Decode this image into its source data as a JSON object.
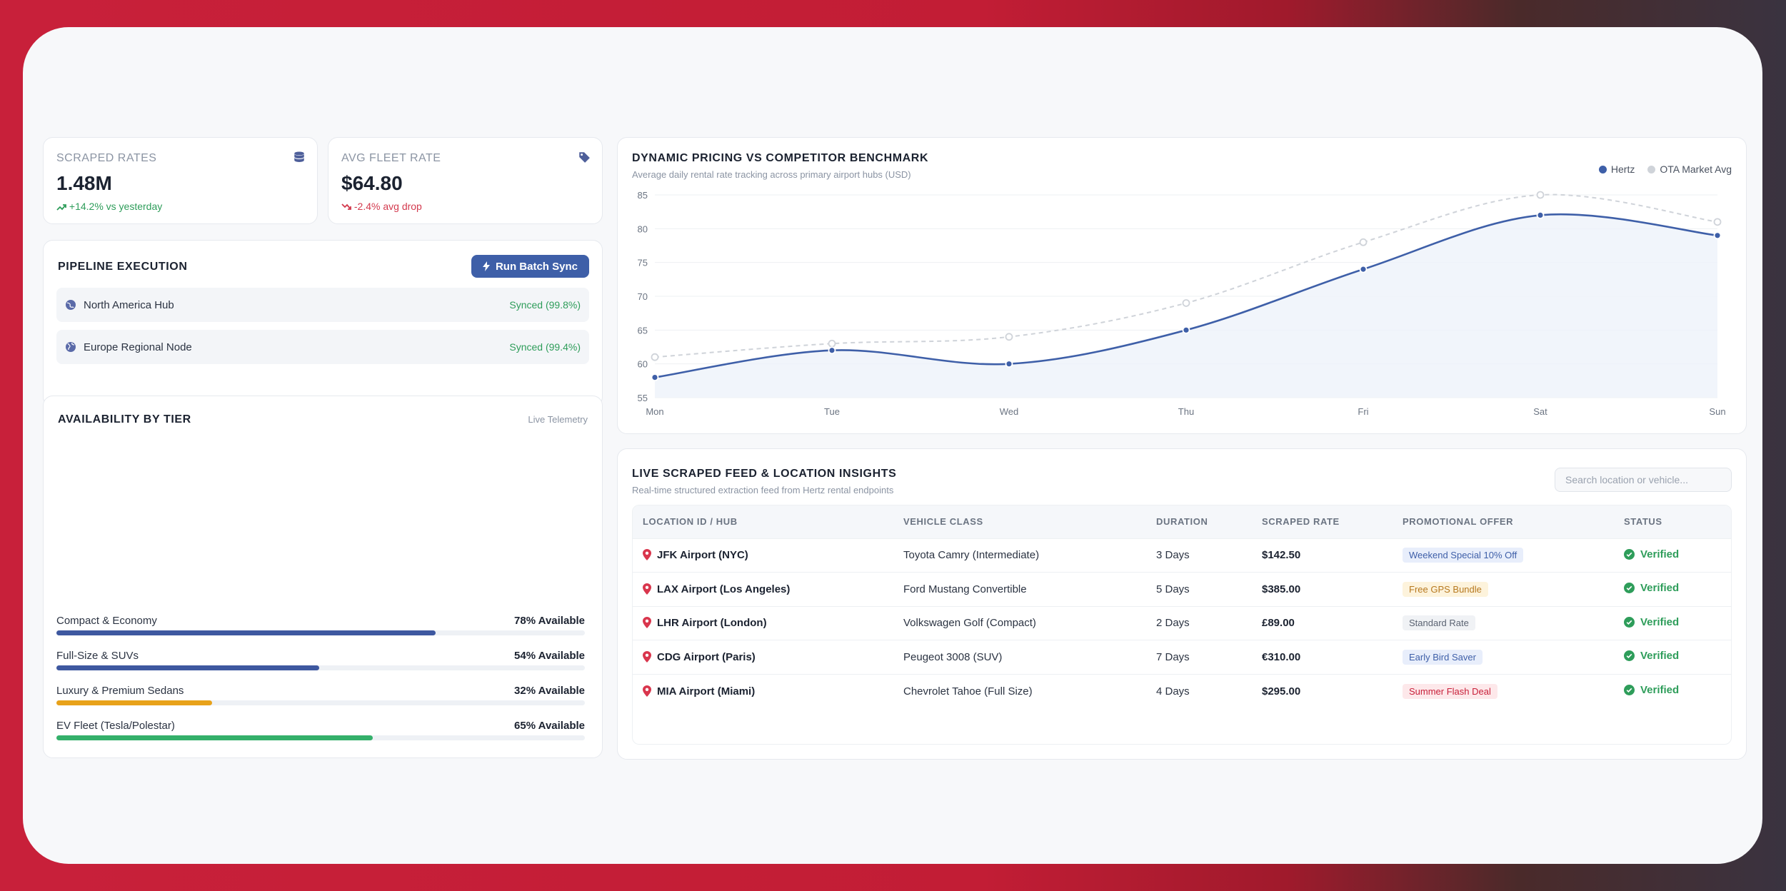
{
  "kpis": [
    {
      "label": "SCRAPED RATES",
      "value": "1.48M",
      "delta": "+14.2% vs yesterday",
      "icon": "database-icon",
      "trend": "up"
    },
    {
      "label": "AVG FLEET RATE",
      "value": "$64.80",
      "delta": "-2.4% avg drop",
      "icon": "tag-icon",
      "trend": "down"
    }
  ],
  "pipeline": {
    "title": "PIPELINE EXECUTION",
    "button_label": "Run Batch Sync",
    "nodes": [
      {
        "name": "North America Hub",
        "status": "Synced (99.8%)"
      },
      {
        "name": "Europe Regional Node",
        "status": "Synced (99.4%)"
      }
    ]
  },
  "availability": {
    "title": "AVAILABILITY BY TIER",
    "subtitle": "Live Telemetry",
    "tiers": [
      {
        "label": "Compact & Economy",
        "value_text": "78% Available",
        "pct": 78,
        "color": "#3e58a0"
      },
      {
        "label": "Full-Size & SUVs",
        "value_text": "54% Available",
        "pct": 54,
        "color": "#3e58a0"
      },
      {
        "label": "Luxury & Premium Sedans",
        "value_text": "32% Available",
        "pct": 32,
        "color": "#e8a21a"
      },
      {
        "label": "EV Fleet (Tesla/Polestar)",
        "value_text": "65% Available",
        "pct": 65,
        "color": "#34b06a"
      }
    ]
  },
  "chart_card": {
    "title": "DYNAMIC PRICING VS COMPETITOR BENCHMARK",
    "subtitle": "Average daily rental rate tracking across primary airport hubs (USD)"
  },
  "chart_data": {
    "type": "line",
    "categories": [
      "Mon",
      "Tue",
      "Wed",
      "Thu",
      "Fri",
      "Sat",
      "Sun"
    ],
    "series": [
      {
        "name": "Hertz",
        "values": [
          58,
          62,
          60,
          65,
          74,
          82,
          79
        ],
        "color": "#3e5fa8",
        "style": "solid",
        "fill": true
      },
      {
        "name": "OTA Market Avg",
        "values": [
          61,
          63,
          64,
          69,
          78,
          85,
          81
        ],
        "color": "#cfd3d9",
        "style": "dashed",
        "fill": false
      }
    ],
    "yticks": [
      55,
      60,
      65,
      70,
      75,
      80,
      85
    ],
    "ylim": [
      55,
      85
    ],
    "grid": true,
    "legend": "top-right"
  },
  "feed": {
    "title": "LIVE SCRAPED FEED & LOCATION INSIGHTS",
    "subtitle": "Real-time structured extraction feed from Hertz rental endpoints",
    "search_placeholder": "Search location or vehicle...",
    "columns": [
      "LOCATION ID / HUB",
      "VEHICLE CLASS",
      "DURATION",
      "SCRAPED RATE",
      "PROMOTIONAL OFFER",
      "STATUS"
    ],
    "rows": [
      {
        "location": "JFK Airport (NYC)",
        "vehicle": "Toyota Camry (Intermediate)",
        "duration": "3 Days",
        "rate": "$142.50",
        "promo": "Weekend Special 10% Off",
        "promo_bg": "#e8eefb",
        "promo_fg": "#3e5fa8",
        "status": "Verified"
      },
      {
        "location": "LAX Airport (Los Angeles)",
        "vehicle": "Ford Mustang Convertible",
        "duration": "5 Days",
        "rate": "$385.00",
        "promo": "Free GPS Bundle",
        "promo_bg": "#fdf3dc",
        "promo_fg": "#b7791f",
        "status": "Verified"
      },
      {
        "location": "LHR Airport (London)",
        "vehicle": "Volkswagen Golf (Compact)",
        "duration": "2 Days",
        "rate": "£89.00",
        "promo": "Standard Rate",
        "promo_bg": "#f0f2f5",
        "promo_fg": "#5b6372",
        "status": "Verified"
      },
      {
        "location": "CDG Airport (Paris)",
        "vehicle": "Peugeot 3008 (SUV)",
        "duration": "7 Days",
        "rate": "€310.00",
        "promo": "Early Bird Saver",
        "promo_bg": "#e8eefb",
        "promo_fg": "#3e5fa8",
        "status": "Verified"
      },
      {
        "location": "MIA Airport (Miami)",
        "vehicle": "Chevrolet Tahoe (Full Size)",
        "duration": "4 Days",
        "rate": "$295.00",
        "promo": "Summer Flash Deal",
        "promo_bg": "#fde8ea",
        "promo_fg": "#c8203a",
        "status": "Verified"
      }
    ]
  }
}
